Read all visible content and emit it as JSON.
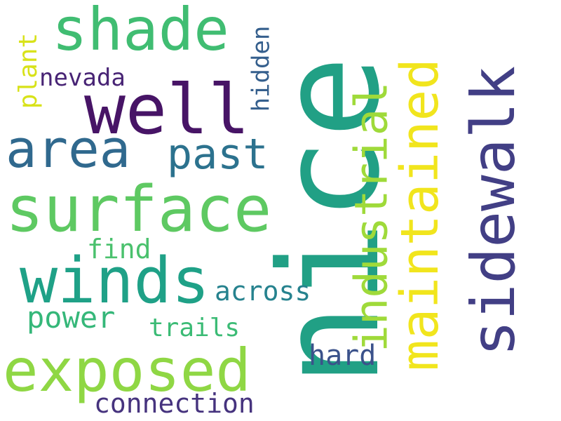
{
  "words": [
    {
      "text": "nice",
      "color": "#21a085"
    },
    {
      "text": "sidewalk",
      "color": "#423f85"
    },
    {
      "text": "maintained",
      "color": "#f1e51d"
    },
    {
      "text": "industrial",
      "color": "#9fda3a"
    },
    {
      "text": "shade",
      "color": "#40bd72"
    },
    {
      "text": "well",
      "color": "#471466"
    },
    {
      "text": "area",
      "color": "#30698e"
    },
    {
      "text": "past",
      "color": "#2c728e"
    },
    {
      "text": "surface",
      "color": "#5ec962"
    },
    {
      "text": "winds",
      "color": "#1fa187"
    },
    {
      "text": "exposed",
      "color": "#8fd744"
    },
    {
      "text": "nevada",
      "color": "#482475"
    },
    {
      "text": "hidden",
      "color": "#355f8d"
    },
    {
      "text": "plant",
      "color": "#d8e219"
    },
    {
      "text": "find",
      "color": "#4ac16d"
    },
    {
      "text": "across",
      "color": "#26828e"
    },
    {
      "text": "power",
      "color": "#35b779"
    },
    {
      "text": "trails",
      "color": "#3bbb75"
    },
    {
      "text": "hard",
      "color": "#3b528b"
    },
    {
      "text": "connection",
      "color": "#46337e"
    }
  ]
}
